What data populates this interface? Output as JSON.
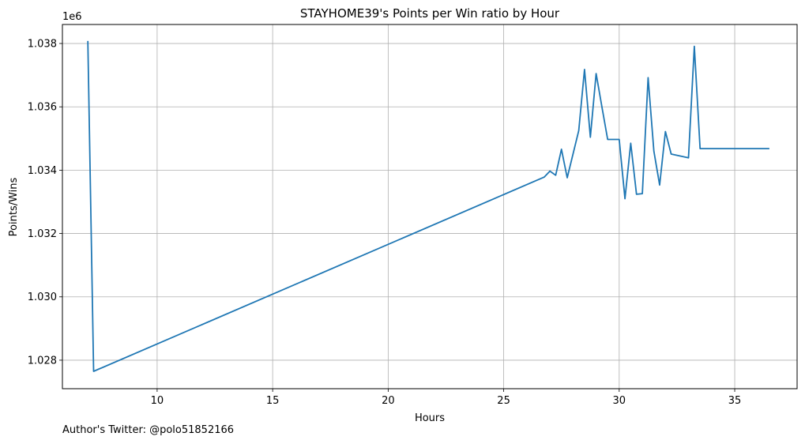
{
  "chart_data": {
    "type": "line",
    "title": "STAYHOME39's Points per Win ratio by Hour",
    "xlabel": "Hours",
    "ylabel": "Points/Wins",
    "y_offset_label": "1e6",
    "xlim": [
      5.9,
      37.7
    ],
    "ylim": [
      1.0271,
      1.0386
    ],
    "xticks": [
      10,
      15,
      20,
      25,
      30,
      35
    ],
    "yticks": [
      1.028,
      1.03,
      1.032,
      1.034,
      1.036,
      1.038
    ],
    "ytick_labels": [
      "1.028",
      "1.030",
      "1.032",
      "1.034",
      "1.036",
      "1.038"
    ],
    "grid": true,
    "line_color": "#1f77b4",
    "x": [
      7.0,
      7.25,
      26.75,
      27.0,
      27.25,
      27.5,
      27.75,
      28.25,
      28.5,
      28.75,
      29.0,
      29.25,
      29.5,
      30.0,
      30.25,
      30.5,
      30.75,
      31.0,
      31.25,
      31.5,
      31.75,
      32.0,
      32.25,
      33.0,
      33.25,
      33.5,
      36.5
    ],
    "y": [
      1.03808,
      1.02765,
      1.03378,
      1.03397,
      1.03384,
      1.03466,
      1.03376,
      1.03525,
      1.03718,
      1.03504,
      1.03705,
      1.036,
      1.03497,
      1.03497,
      1.0331,
      1.03485,
      1.03324,
      1.03326,
      1.03692,
      1.0346,
      1.03353,
      1.03522,
      1.03451,
      1.03439,
      1.03791,
      1.03468,
      1.03468
    ]
  },
  "footer": {
    "author": "Author's Twitter: @polo51852166"
  }
}
